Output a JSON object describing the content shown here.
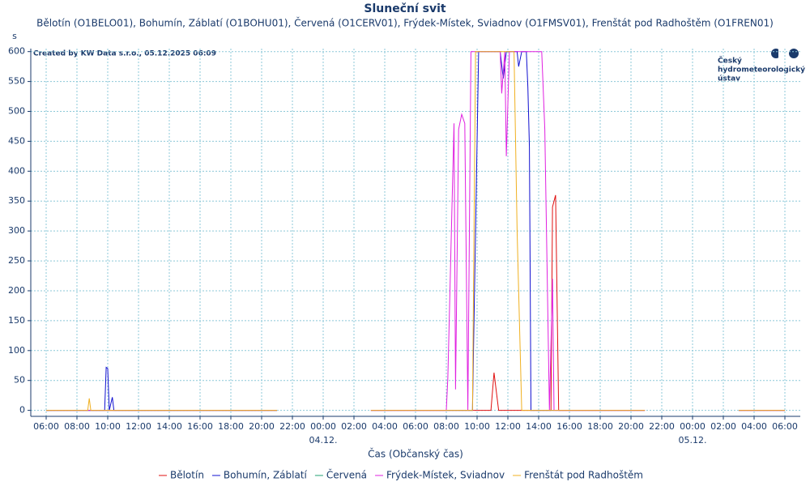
{
  "chart_data": {
    "type": "line",
    "title": "Sluneční svit",
    "subtitle": "Bělotín (O1BELO01), Bohumín, Záblatí (O1BOHU01), Červená (O1CERV01), Frýdek-Místek, Sviadnov (O1FMSV01), Frenštát pod Radhoštěm (O1FREN01)",
    "y_label": "s",
    "x_label": "Čas (Občanský čas)",
    "watermark": "Created by KW Data s.r.o., 05.12.2025 06:09",
    "logo_lines": [
      "Český",
      "hydrometeorologický",
      "ústav"
    ],
    "grid": true,
    "xlim": [
      -1,
      49
    ],
    "ylim": [
      -10,
      605
    ],
    "yticks": [
      0,
      50,
      100,
      150,
      200,
      250,
      300,
      350,
      400,
      450,
      500,
      550,
      600
    ],
    "xticks": [
      {
        "value": 0,
        "label": "06:00"
      },
      {
        "value": 2,
        "label": "08:00"
      },
      {
        "value": 4,
        "label": "10:00"
      },
      {
        "value": 6,
        "label": "12:00"
      },
      {
        "value": 8,
        "label": "14:00"
      },
      {
        "value": 10,
        "label": "16:00"
      },
      {
        "value": 12,
        "label": "18:00"
      },
      {
        "value": 14,
        "label": "20:00"
      },
      {
        "value": 16,
        "label": "22:00"
      },
      {
        "value": 18,
        "label": "00:00"
      },
      {
        "value": 20,
        "label": "02:00"
      },
      {
        "value": 22,
        "label": "04:00"
      },
      {
        "value": 24,
        "label": "06:00"
      },
      {
        "value": 26,
        "label": "08:00"
      },
      {
        "value": 28,
        "label": "10:00"
      },
      {
        "value": 30,
        "label": "12:00"
      },
      {
        "value": 32,
        "label": "14:00"
      },
      {
        "value": 34,
        "label": "16:00"
      },
      {
        "value": 36,
        "label": "18:00"
      },
      {
        "value": 38,
        "label": "20:00"
      },
      {
        "value": 40,
        "label": "22:00"
      },
      {
        "value": 42,
        "label": "00:00"
      },
      {
        "value": 44,
        "label": "02:00"
      },
      {
        "value": 46,
        "label": "04:00"
      },
      {
        "value": 48,
        "label": "06:00"
      }
    ],
    "date_labels": [
      {
        "value": 18,
        "label": "04.12."
      },
      {
        "value": 42,
        "label": "05.12."
      }
    ],
    "series": [
      {
        "name": "Bělotín",
        "color": "#e01010",
        "x": [
          0,
          15,
          18,
          21.1,
          28.9,
          29.1,
          29.4,
          32.8,
          32.9,
          33.1,
          33.3,
          38.9,
          42,
          45,
          48
        ],
        "values": [
          0,
          0,
          null,
          0,
          0,
          63,
          0,
          0,
          340,
          360,
          0,
          0,
          null,
          0,
          0
        ]
      },
      {
        "name": "Bohumín, Záblatí",
        "color": "#1010d0",
        "x": [
          0,
          3.8,
          3.9,
          4.0,
          4.1,
          4.3,
          4.4,
          15,
          18,
          21.1,
          27.7,
          28.1,
          29.5,
          29.7,
          29.9,
          30.6,
          30.7,
          30.9,
          31.2,
          31.3,
          31.4,
          31.5,
          38.9,
          42,
          45,
          48
        ],
        "values": [
          0,
          0,
          72,
          70,
          0,
          22,
          0,
          0,
          null,
          0,
          0,
          600,
          600,
          555,
          600,
          600,
          575,
          600,
          600,
          540,
          440,
          0,
          0,
          null,
          0,
          0
        ]
      },
      {
        "name": "Červená",
        "color": "#20a070",
        "x": [
          0,
          15
        ],
        "values": [
          0,
          0
        ]
      },
      {
        "name": "Frýdek-Místek, Sviadnov",
        "color": "#e020e0",
        "x": [
          0,
          15,
          18,
          21.1,
          26,
          26.1,
          26.5,
          26.6,
          26.8,
          27,
          27.2,
          27.4,
          27.6,
          29.5,
          29.6,
          29.8,
          29.9,
          30.1,
          32.2,
          32.4,
          32.7,
          32.9,
          33,
          38.9,
          42,
          45,
          48
        ],
        "values": [
          0,
          0,
          null,
          0,
          0,
          55,
          480,
          35,
          470,
          495,
          480,
          0,
          600,
          600,
          530,
          600,
          425,
          600,
          600,
          470,
          0,
          220,
          0,
          0,
          null,
          0,
          0
        ]
      },
      {
        "name": "Frenštát pod Radhoštěm",
        "color": "#f0b020",
        "x": [
          0,
          2.7,
          2.8,
          2.9,
          15,
          18,
          21.1,
          27.7,
          27.9,
          30.4,
          30.6,
          30.9,
          38.9,
          42,
          45,
          48
        ],
        "values": [
          0,
          0,
          20,
          0,
          0,
          null,
          0,
          0,
          600,
          600,
          300,
          0,
          0,
          null,
          0,
          0
        ]
      }
    ]
  }
}
